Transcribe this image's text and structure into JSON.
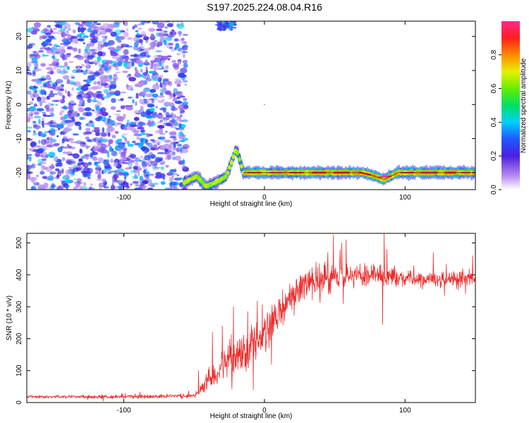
{
  "title": "S197.2025.224.08.04.R16",
  "colors": {
    "snr_line": "#ee2b2b",
    "signal_band": "#ff1a1a",
    "noise_purple": "#7a2be0",
    "frame": "#000000"
  },
  "chart_data": [
    {
      "type": "heatmap",
      "title": "S197.2025.224.08.04.R16",
      "xlabel": "Height of straight line (km)",
      "ylabel": "Frequency (Hz)",
      "xlim": [
        -169,
        150
      ],
      "ylim": [
        -25,
        24.5
      ],
      "x_ticks": [
        -100,
        0,
        100
      ],
      "x_tick_labels": [
        "-100",
        "0",
        "100"
      ],
      "y_ticks": [
        -20,
        -10,
        0,
        10,
        20
      ],
      "y_tick_labels": [
        "-20",
        "-10",
        "0",
        "10",
        "20"
      ],
      "colorbar": {
        "label": "Normalized spectral amplitude",
        "range": [
          0,
          1
        ],
        "ticks": [
          0,
          0.2,
          0.4,
          0.6,
          0.8
        ],
        "tick_labels": [
          "0.0",
          "0.2",
          "0.4",
          "0.6",
          "0.8"
        ],
        "colormap": "rainbow (violet-blue-cyan-green-yellow-red-magenta)"
      },
      "features": {
        "broadband_noise_region": {
          "x": [
            -169,
            -56
          ],
          "y": [
            -25,
            24.5
          ],
          "amplitude": [
            0.0,
            0.35
          ]
        },
        "noise_patch_top": {
          "x": [
            -34,
            -21
          ],
          "y": [
            22,
            24.5
          ]
        },
        "signal_track": [
          {
            "x": -57,
            "y": -23
          },
          {
            "x": -48,
            "y": -21
          },
          {
            "x": -42,
            "y": -24
          },
          {
            "x": -35,
            "y": -23
          },
          {
            "x": -27,
            "y": -21
          },
          {
            "x": -20,
            "y": -13
          },
          {
            "x": -15,
            "y": -20
          },
          {
            "x": 0,
            "y": -20
          },
          {
            "x": 40,
            "y": -20
          },
          {
            "x": 70,
            "y": -20
          },
          {
            "x": 78,
            "y": -21
          },
          {
            "x": 85,
            "y": -22
          },
          {
            "x": 95,
            "y": -20
          },
          {
            "x": 150,
            "y": -20
          }
        ]
      }
    },
    {
      "type": "line",
      "xlabel": "Height of straight line (km)",
      "ylabel": "SNR (10 * v/v)",
      "xlim": [
        -169,
        150
      ],
      "ylim": [
        0,
        530
      ],
      "x_ticks": [
        -100,
        0,
        100
      ],
      "x_tick_labels": [
        "-100",
        "0",
        "100"
      ],
      "y_ticks": [
        0,
        100,
        200,
        300,
        400,
        500
      ],
      "y_tick_labels": [
        "0",
        "100",
        "200",
        "300",
        "400",
        "500"
      ],
      "series": [
        {
          "trend": {
            "x": [
              -169,
              -120,
              -60,
              -50,
              -45,
              -38,
              -30,
              -20,
              -10,
              -5,
              0,
              10,
              20,
              30,
              45,
              60,
              80,
              100,
              120,
              150
            ],
            "y": [
              18,
              18,
              20,
              22,
              40,
              80,
              110,
              140,
              170,
              190,
              215,
              270,
              330,
              370,
              395,
              400,
              395,
              390,
              385,
              390
            ]
          },
          "noise_amplitude": {
            "x": [
              -169,
              -50,
              -45,
              -30,
              -10,
              0,
              20,
              40,
              60,
              100,
              150
            ],
            "y": [
              6,
              8,
              30,
              60,
              85,
              80,
              60,
              55,
              45,
              35,
              30
            ]
          },
          "peaks": [
            {
              "x": -47,
              "y": 100
            },
            {
              "x": -37,
              "y": 220
            },
            {
              "x": -30,
              "y": 240
            },
            {
              "x": -22,
              "y": 300
            },
            {
              "x": -12,
              "y": 285
            },
            {
              "x": -8,
              "y": 200
            },
            {
              "x": 15,
              "y": 340
            },
            {
              "x": 32,
              "y": 415
            },
            {
              "x": 45,
              "y": 470
            },
            {
              "x": 49,
              "y": 525
            },
            {
              "x": 55,
              "y": 500
            },
            {
              "x": 58,
              "y": 510
            },
            {
              "x": 85,
              "y": 530
            },
            {
              "x": 87,
              "y": 480
            },
            {
              "x": 120,
              "y": 470
            },
            {
              "x": 148,
              "y": 460
            }
          ],
          "dips": [
            {
              "x": -8,
              "y": 40
            },
            {
              "x": 5,
              "y": 120
            },
            {
              "x": 56,
              "y": 310
            },
            {
              "x": 84,
              "y": 245
            },
            {
              "x": 128,
              "y": 335
            },
            {
              "x": 143,
              "y": 340
            }
          ]
        }
      ]
    }
  ]
}
